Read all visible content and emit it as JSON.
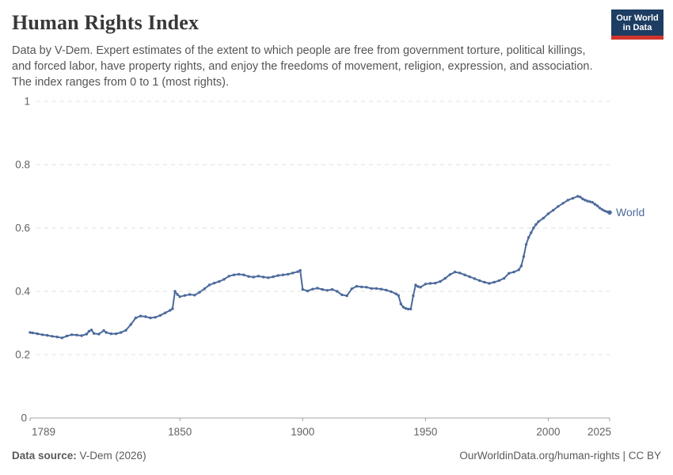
{
  "header": {
    "title": "Human Rights Index",
    "subtitle": "Data by V-Dem. Expert estimates of the extent to which people are free from government torture, political killings, and forced labor, have property rights, and enjoy the freedoms of movement, religion, expression, and association. The index ranges from 0 to 1 (most rights).",
    "logo": {
      "line1": "Our World",
      "line2": "in Data",
      "bg": "#1d3d63",
      "accent": "#d0342c"
    }
  },
  "chart_data": {
    "type": "line",
    "title": "Human Rights Index",
    "xlabel": "",
    "ylabel": "",
    "xlim": [
      1789,
      2025
    ],
    "ylim": [
      0,
      1
    ],
    "x_ticks": [
      1789,
      1850,
      1900,
      1950,
      2000,
      2025
    ],
    "y_ticks": [
      0,
      0.2,
      0.4,
      0.6,
      0.8,
      1
    ],
    "grid": "horizontal-dashed",
    "legend_position": "end-of-line-label",
    "colors": {
      "grid": "#e0e0e0",
      "axis": "#a3a3a3",
      "tick_label": "#636363"
    },
    "series": [
      {
        "name": "World",
        "color": "#4c6a9c",
        "points": [
          [
            1789,
            0.27
          ],
          [
            1790,
            0.269
          ],
          [
            1792,
            0.266
          ],
          [
            1794,
            0.263
          ],
          [
            1796,
            0.261
          ],
          [
            1798,
            0.258
          ],
          [
            1800,
            0.256
          ],
          [
            1802,
            0.253
          ],
          [
            1804,
            0.259
          ],
          [
            1806,
            0.263
          ],
          [
            1808,
            0.262
          ],
          [
            1810,
            0.26
          ],
          [
            1812,
            0.265
          ],
          [
            1813,
            0.274
          ],
          [
            1814,
            0.278
          ],
          [
            1815,
            0.267
          ],
          [
            1817,
            0.265
          ],
          [
            1819,
            0.276
          ],
          [
            1820,
            0.27
          ],
          [
            1822,
            0.266
          ],
          [
            1824,
            0.266
          ],
          [
            1826,
            0.27
          ],
          [
            1828,
            0.277
          ],
          [
            1830,
            0.295
          ],
          [
            1832,
            0.316
          ],
          [
            1834,
            0.322
          ],
          [
            1836,
            0.32
          ],
          [
            1838,
            0.316
          ],
          [
            1840,
            0.318
          ],
          [
            1842,
            0.324
          ],
          [
            1844,
            0.332
          ],
          [
            1846,
            0.34
          ],
          [
            1847,
            0.345
          ],
          [
            1848,
            0.4
          ],
          [
            1849,
            0.39
          ],
          [
            1850,
            0.383
          ],
          [
            1852,
            0.387
          ],
          [
            1854,
            0.39
          ],
          [
            1856,
            0.388
          ],
          [
            1858,
            0.397
          ],
          [
            1860,
            0.408
          ],
          [
            1862,
            0.42
          ],
          [
            1864,
            0.426
          ],
          [
            1866,
            0.431
          ],
          [
            1868,
            0.438
          ],
          [
            1870,
            0.448
          ],
          [
            1872,
            0.452
          ],
          [
            1874,
            0.454
          ],
          [
            1876,
            0.452
          ],
          [
            1878,
            0.447
          ],
          [
            1880,
            0.445
          ],
          [
            1882,
            0.448
          ],
          [
            1884,
            0.445
          ],
          [
            1886,
            0.443
          ],
          [
            1888,
            0.446
          ],
          [
            1890,
            0.45
          ],
          [
            1892,
            0.452
          ],
          [
            1894,
            0.454
          ],
          [
            1896,
            0.458
          ],
          [
            1898,
            0.462
          ],
          [
            1899,
            0.466
          ],
          [
            1900,
            0.406
          ],
          [
            1902,
            0.401
          ],
          [
            1904,
            0.407
          ],
          [
            1906,
            0.41
          ],
          [
            1908,
            0.406
          ],
          [
            1910,
            0.403
          ],
          [
            1912,
            0.406
          ],
          [
            1914,
            0.4
          ],
          [
            1916,
            0.389
          ],
          [
            1918,
            0.386
          ],
          [
            1920,
            0.408
          ],
          [
            1922,
            0.416
          ],
          [
            1924,
            0.414
          ],
          [
            1926,
            0.413
          ],
          [
            1928,
            0.409
          ],
          [
            1930,
            0.409
          ],
          [
            1932,
            0.407
          ],
          [
            1934,
            0.404
          ],
          [
            1936,
            0.399
          ],
          [
            1938,
            0.392
          ],
          [
            1939,
            0.387
          ],
          [
            1940,
            0.36
          ],
          [
            1941,
            0.35
          ],
          [
            1942,
            0.346
          ],
          [
            1943,
            0.344
          ],
          [
            1944,
            0.344
          ],
          [
            1945,
            0.386
          ],
          [
            1946,
            0.42
          ],
          [
            1947,
            0.415
          ],
          [
            1948,
            0.413
          ],
          [
            1950,
            0.423
          ],
          [
            1952,
            0.425
          ],
          [
            1954,
            0.426
          ],
          [
            1956,
            0.431
          ],
          [
            1958,
            0.441
          ],
          [
            1960,
            0.453
          ],
          [
            1962,
            0.461
          ],
          [
            1964,
            0.458
          ],
          [
            1966,
            0.452
          ],
          [
            1968,
            0.446
          ],
          [
            1970,
            0.44
          ],
          [
            1972,
            0.434
          ],
          [
            1974,
            0.429
          ],
          [
            1976,
            0.425
          ],
          [
            1978,
            0.429
          ],
          [
            1980,
            0.434
          ],
          [
            1982,
            0.441
          ],
          [
            1984,
            0.457
          ],
          [
            1986,
            0.461
          ],
          [
            1988,
            0.468
          ],
          [
            1989,
            0.48
          ],
          [
            1990,
            0.51
          ],
          [
            1991,
            0.548
          ],
          [
            1992,
            0.57
          ],
          [
            1993,
            0.585
          ],
          [
            1994,
            0.6
          ],
          [
            1995,
            0.611
          ],
          [
            1996,
            0.62
          ],
          [
            1998,
            0.631
          ],
          [
            2000,
            0.645
          ],
          [
            2002,
            0.656
          ],
          [
            2004,
            0.668
          ],
          [
            2006,
            0.678
          ],
          [
            2008,
            0.688
          ],
          [
            2010,
            0.694
          ],
          [
            2012,
            0.7
          ],
          [
            2013,
            0.698
          ],
          [
            2014,
            0.692
          ],
          [
            2015,
            0.688
          ],
          [
            2016,
            0.685
          ],
          [
            2017,
            0.683
          ],
          [
            2018,
            0.681
          ],
          [
            2019,
            0.675
          ],
          [
            2020,
            0.67
          ],
          [
            2021,
            0.663
          ],
          [
            2022,
            0.658
          ],
          [
            2023,
            0.654
          ],
          [
            2024,
            0.651
          ],
          [
            2025,
            0.649
          ]
        ]
      }
    ]
  },
  "footer": {
    "source_label": "Data source:",
    "source_value": " V-Dem (2026)",
    "link": "OurWorldinData.org/human-rights",
    "separator": " | ",
    "license": "CC BY"
  }
}
